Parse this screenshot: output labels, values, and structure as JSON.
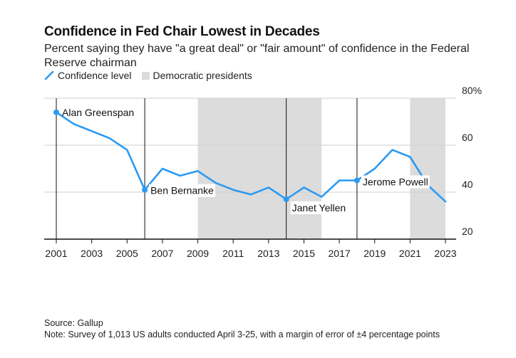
{
  "header": {
    "title": "Confidence in Fed Chair Lowest in Decades",
    "subtitle": "Percent saying they have \"a great deal\" or \"fair amount\" of confidence in the Federal Reserve chairman"
  },
  "legend": {
    "line_label": "Confidence level",
    "band_label": "Democratic presidents"
  },
  "footer": {
    "source": "Source: Gallup",
    "note": "Note: Survey of 1,013 US adults conducted April 3-25, with a margin of error of ±4 percentage points"
  },
  "colors": {
    "line": "#2b9af3",
    "band": "#dcdcdc",
    "axis": "#111111",
    "grid": "#cfcfcf"
  },
  "chart_data": {
    "type": "line",
    "title": "Confidence in Fed Chair Lowest in Decades",
    "xlabel": "",
    "ylabel": "",
    "xlim": [
      2001,
      2023
    ],
    "ylim": [
      20,
      80
    ],
    "grid": true,
    "y_axis_side": "right",
    "x_ticks": [
      2001,
      2003,
      2005,
      2007,
      2009,
      2011,
      2013,
      2015,
      2017,
      2019,
      2021,
      2023
    ],
    "y_ticks": [
      {
        "value": 20,
        "label": "20"
      },
      {
        "value": 40,
        "label": "40"
      },
      {
        "value": 60,
        "label": "60"
      },
      {
        "value": 80,
        "label": "80%"
      }
    ],
    "series": [
      {
        "name": "Confidence level",
        "x": [
          2001,
          2002,
          2003,
          2004,
          2005,
          2006,
          2007,
          2008,
          2009,
          2010,
          2011,
          2012,
          2013,
          2014,
          2015,
          2016,
          2017,
          2018,
          2019,
          2020,
          2021,
          2022,
          2023
        ],
        "values": [
          74,
          69,
          66,
          63,
          58,
          41,
          50,
          47,
          49,
          44,
          41,
          39,
          42,
          37,
          42,
          38,
          45,
          45,
          50,
          58,
          55,
          43,
          36
        ]
      }
    ],
    "shaded_bands": [
      {
        "from": 2009,
        "to": 2016
      },
      {
        "from": 2021,
        "to": 2023
      }
    ],
    "annotations": [
      {
        "label": "Alan Greenspan",
        "x": 2001,
        "y": 74
      },
      {
        "label": "Ben Bernanke",
        "x": 2006,
        "y": 41
      },
      {
        "label": "Janet Yellen",
        "x": 2014,
        "y": 37
      },
      {
        "label": "Jerome Powell",
        "x": 2018,
        "y": 45
      }
    ]
  }
}
